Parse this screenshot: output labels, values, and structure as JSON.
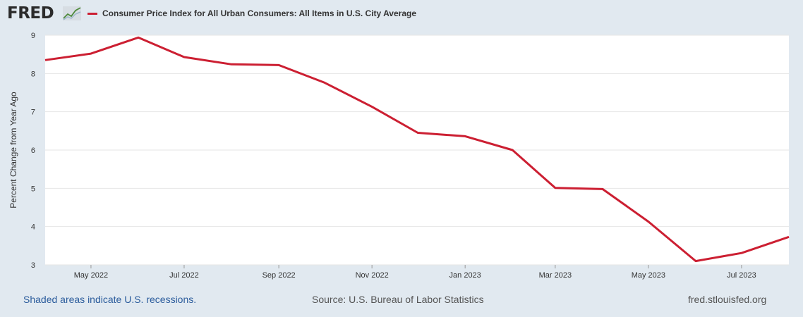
{
  "brand": {
    "logo_text": "FRED"
  },
  "colors": {
    "series": "#cc1f32",
    "background": "#e1e9f0",
    "plot_bg": "#ffffff",
    "grid": "#e6e6e6",
    "link": "#2b5c9c"
  },
  "icons": {
    "logo_graph": "line-graph-icon"
  },
  "footer": {
    "recession_note": "Shaded areas indicate U.S. recessions.",
    "source": "Source: U.S. Bureau of Labor Statistics",
    "site": "fred.stlouisfed.org"
  },
  "chart_data": {
    "type": "line",
    "title": "",
    "xlabel": "",
    "ylabel": "Percent Change from Year Ago",
    "ylim": [
      3,
      9
    ],
    "yticks": [
      3,
      4,
      5,
      6,
      7,
      8,
      9
    ],
    "xlim": [
      "2022-04-01",
      "2023-08-01"
    ],
    "xticks": [
      {
        "date": "2022-05-01",
        "label": "May 2022"
      },
      {
        "date": "2022-07-01",
        "label": "Jul 2022"
      },
      {
        "date": "2022-09-01",
        "label": "Sep 2022"
      },
      {
        "date": "2022-11-01",
        "label": "Nov 2022"
      },
      {
        "date": "2023-01-01",
        "label": "Jan 2023"
      },
      {
        "date": "2023-03-01",
        "label": "Mar 2023"
      },
      {
        "date": "2023-05-01",
        "label": "May 2023"
      },
      {
        "date": "2023-07-01",
        "label": "Jul 2023"
      }
    ],
    "grid": true,
    "legend_position": "top-left",
    "series": [
      {
        "name": "Consumer Price Index for All Urban Consumers: All Items in U.S. City Average",
        "color": "#cc1f32",
        "x": [
          "2022-04-01",
          "2022-05-01",
          "2022-06-01",
          "2022-07-01",
          "2022-08-01",
          "2022-09-01",
          "2022-10-01",
          "2022-11-01",
          "2022-12-01",
          "2023-01-01",
          "2023-02-01",
          "2023-03-01",
          "2023-04-01",
          "2023-05-01",
          "2023-06-01",
          "2023-07-01",
          "2023-08-01"
        ],
        "values": [
          8.35,
          8.52,
          8.94,
          8.43,
          8.24,
          8.22,
          7.76,
          7.13,
          6.45,
          6.36,
          6.0,
          5.01,
          4.98,
          4.13,
          3.1,
          3.31,
          3.73
        ]
      }
    ]
  }
}
